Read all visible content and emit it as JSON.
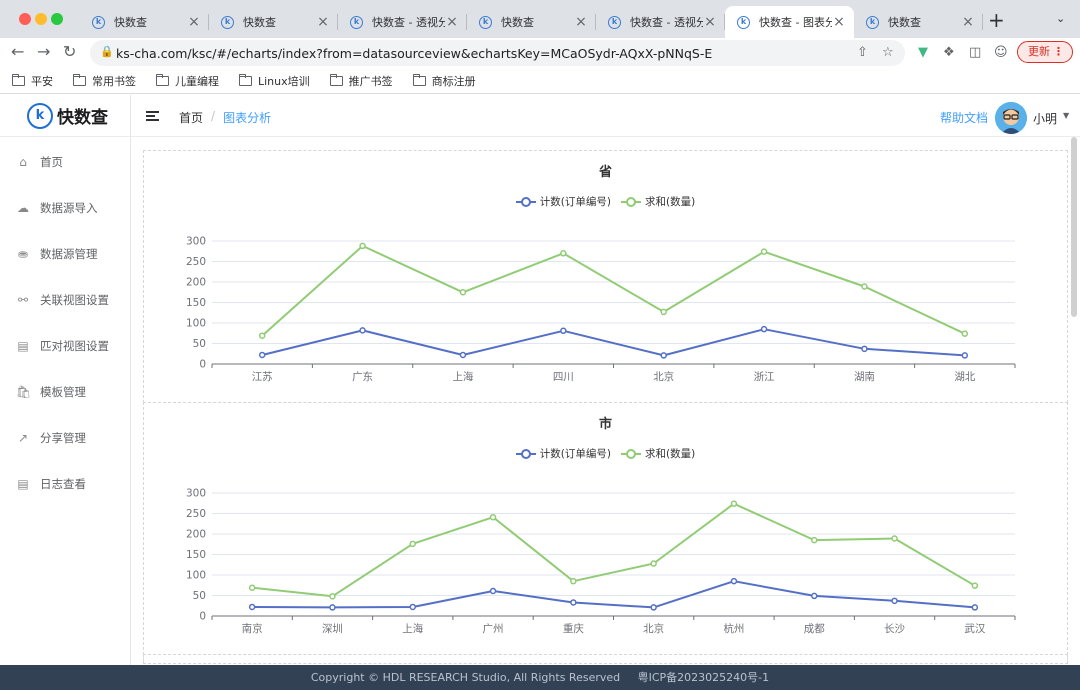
{
  "browser": {
    "tabs": [
      {
        "title": "快数查",
        "active": false
      },
      {
        "title": "快数查",
        "active": false
      },
      {
        "title": "快数查 - 透视分析",
        "active": false
      },
      {
        "title": "快数查",
        "active": false
      },
      {
        "title": "快数查 - 透视分析",
        "active": false
      },
      {
        "title": "快数查 - 图表分析",
        "active": true
      },
      {
        "title": "快数查",
        "active": false
      }
    ],
    "url": "ks-cha.com/ksc/#/echarts/index?from=datasourceview&echartsKey=MCaOSydr-AQxX-pNNqS-E",
    "update_label": "更新",
    "bookmarks": [
      "平安",
      "常用书签",
      "儿童编程",
      "Linux培训",
      "推广书签",
      "商标注册"
    ]
  },
  "app": {
    "logo_text": "快数查",
    "menu": [
      {
        "label": "首页",
        "icon": "home-icon"
      },
      {
        "label": "数据源导入",
        "icon": "cloud-upload-icon"
      },
      {
        "label": "数据源管理",
        "icon": "database-icon"
      },
      {
        "label": "关联视图设置",
        "icon": "link-icon"
      },
      {
        "label": "匹对视图设置",
        "icon": "compare-icon"
      },
      {
        "label": "模板管理",
        "icon": "bag-icon"
      },
      {
        "label": "分享管理",
        "icon": "share-icon"
      },
      {
        "label": "日志查看",
        "icon": "document-icon"
      }
    ],
    "breadcrumb": {
      "home": "首页",
      "current": "图表分析"
    },
    "help_label": "帮助文档",
    "user_name": "小明",
    "footer": {
      "copyright": "Copyright © HDL RESEARCH Studio, All Rights Reserved",
      "icp": "粤ICP备2023025240号-1"
    }
  },
  "chart_data": [
    {
      "type": "line",
      "title": "省",
      "categories": [
        "江苏",
        "广东",
        "上海",
        "四川",
        "北京",
        "浙江",
        "湖南",
        "湖北"
      ],
      "series": [
        {
          "name": "计数(订单编号)",
          "color": "#5470c6",
          "values": [
            22,
            82,
            22,
            81,
            21,
            85,
            37,
            21
          ]
        },
        {
          "name": "求和(数量)",
          "color": "#91cc75",
          "values": [
            69,
            288,
            175,
            270,
            127,
            274,
            189,
            74
          ]
        }
      ],
      "ylim": [
        0,
        300
      ],
      "yticks": [
        0,
        50,
        100,
        150,
        200,
        250,
        300
      ],
      "legend": "top-center",
      "grid": true
    },
    {
      "type": "line",
      "title": "市",
      "categories": [
        "南京",
        "深圳",
        "上海",
        "广州",
        "重庆",
        "北京",
        "杭州",
        "成都",
        "长沙",
        "武汉"
      ],
      "series": [
        {
          "name": "计数(订单编号)",
          "color": "#5470c6",
          "values": [
            22,
            21,
            22,
            61,
            33,
            21,
            85,
            49,
            37,
            21
          ]
        },
        {
          "name": "求和(数量)",
          "color": "#91cc75",
          "values": [
            69,
            48,
            176,
            241,
            85,
            128,
            274,
            185,
            189,
            74
          ]
        }
      ],
      "ylim": [
        0,
        300
      ],
      "yticks": [
        0,
        50,
        100,
        150,
        200,
        250,
        300
      ],
      "legend": "top-center",
      "grid": true
    }
  ]
}
